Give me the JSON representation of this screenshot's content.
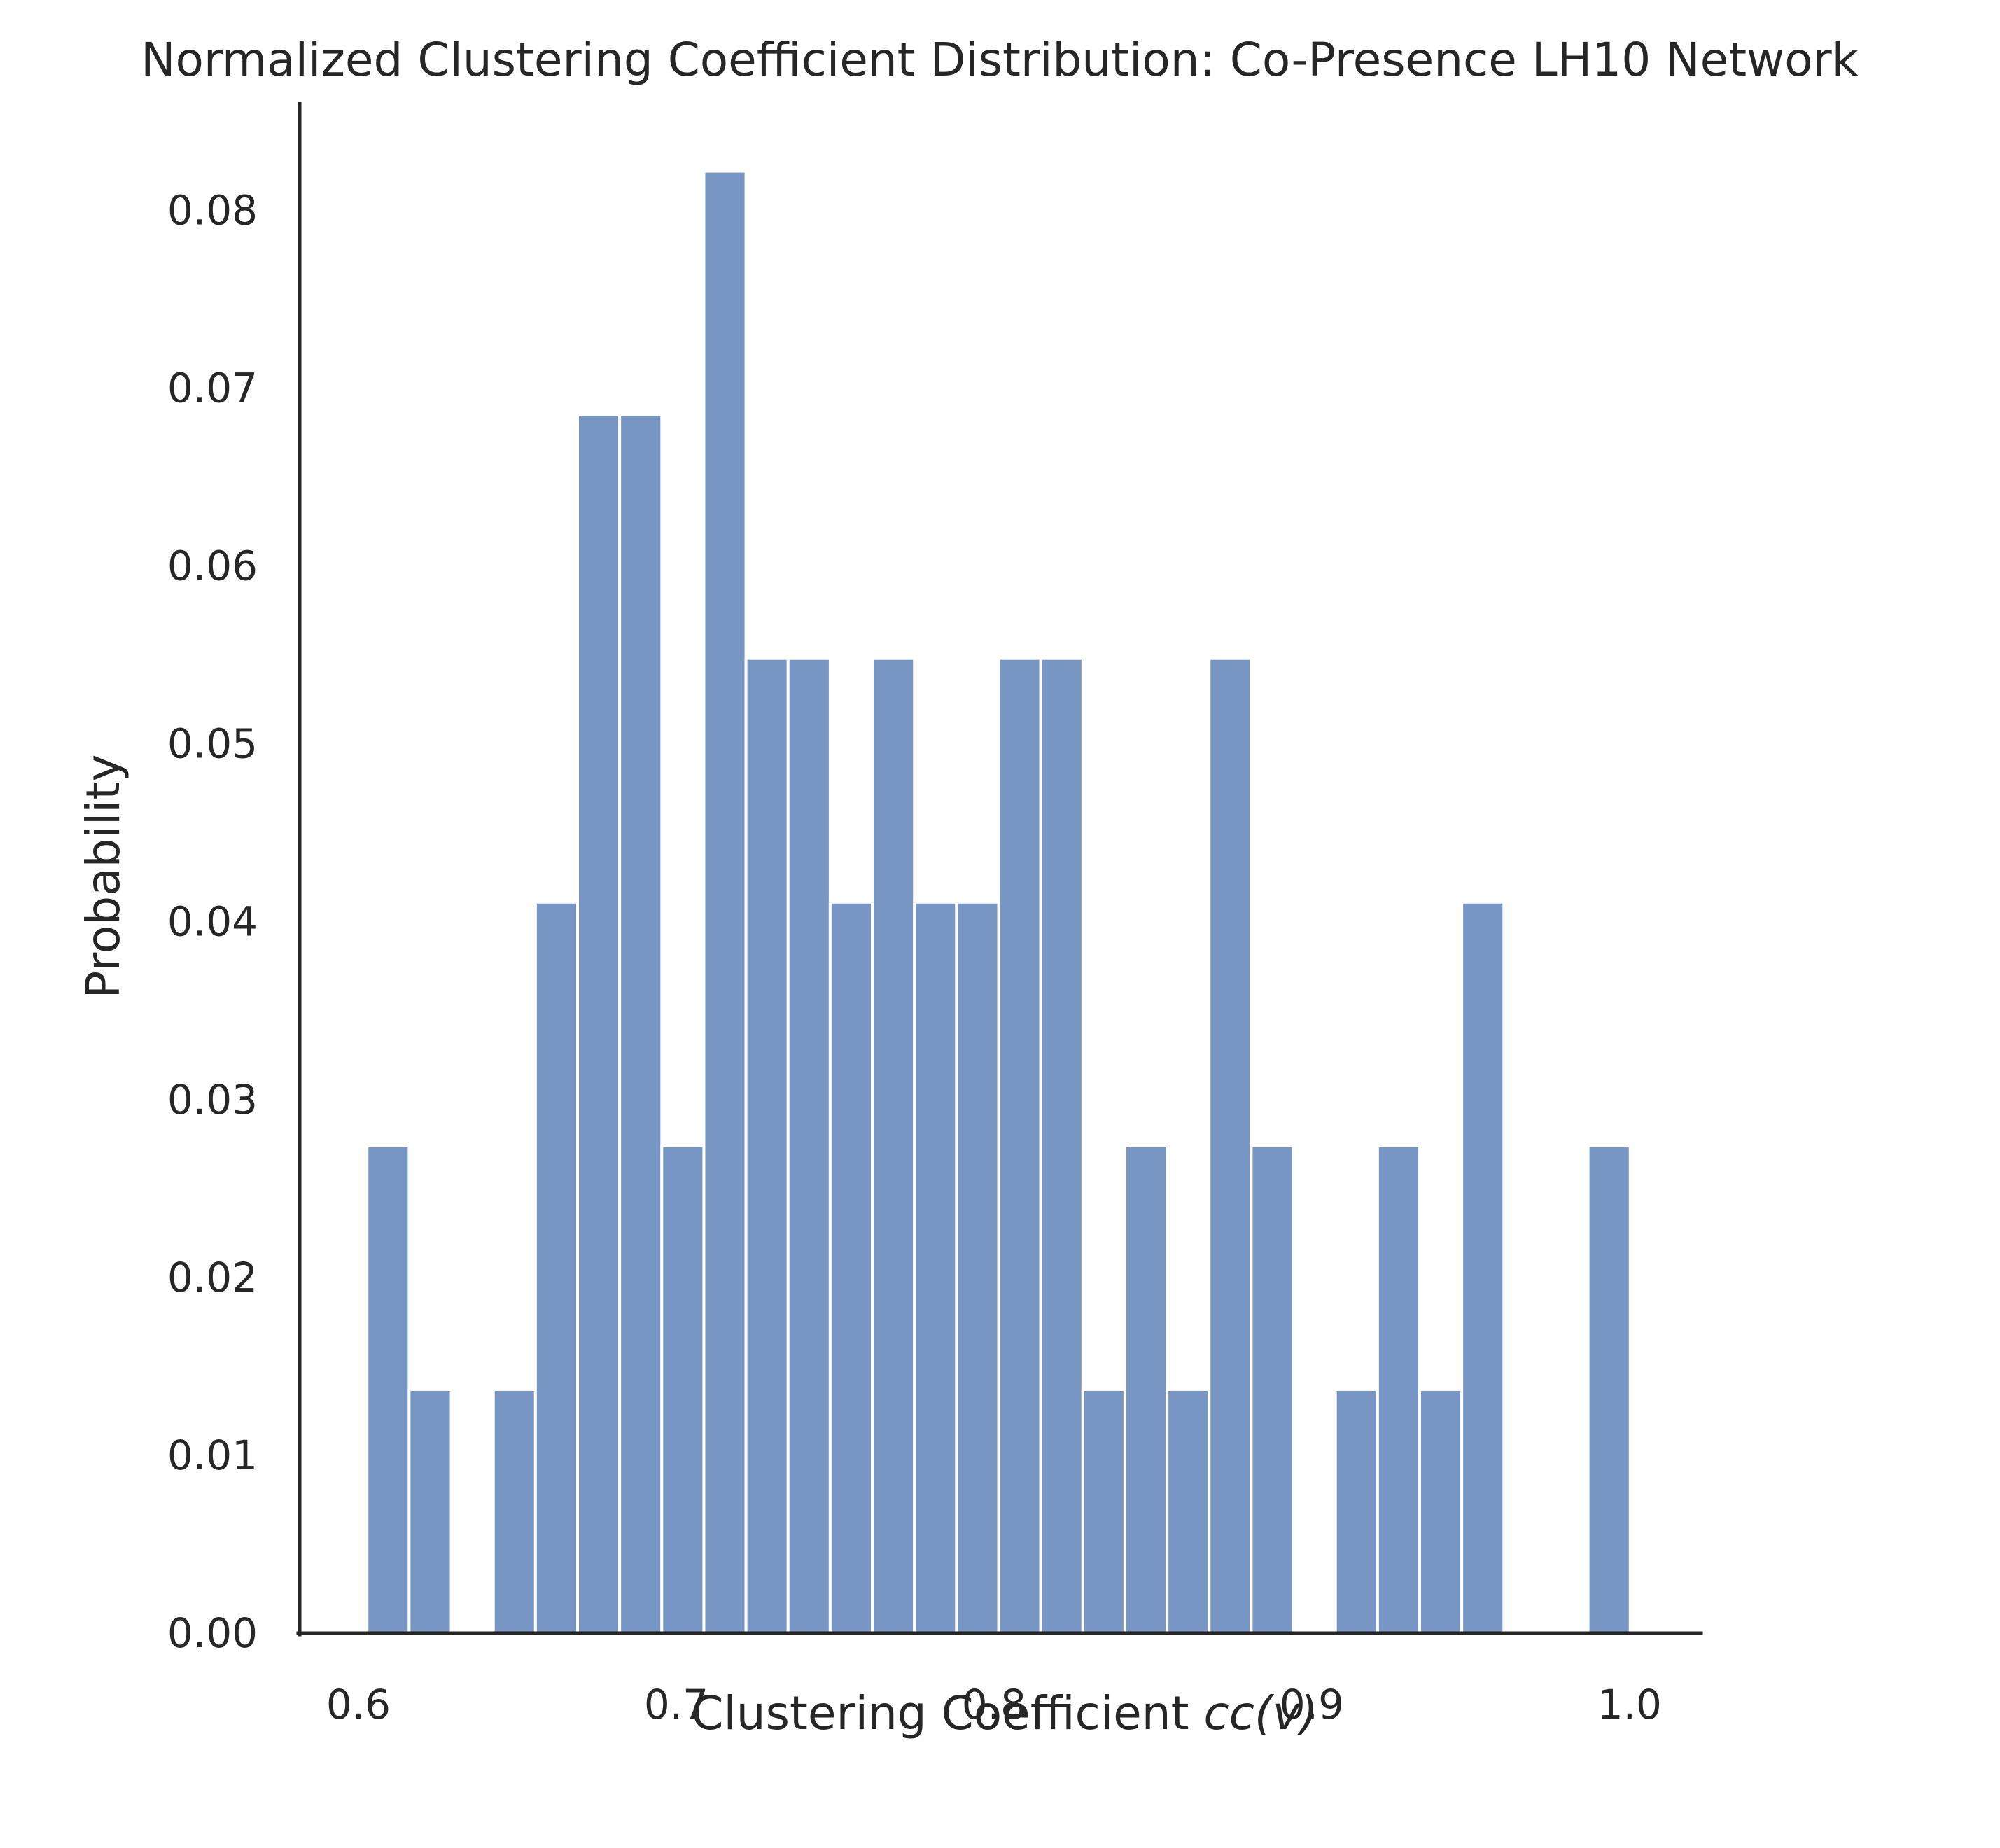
{
  "chart_data": {
    "type": "bar",
    "title": "Normalized Clustering Coefficient Distribution: Co-Presence LH10 Network",
    "xlabel": "Clustering Coefficient",
    "xlabel_math": "cc(v)",
    "ylabel": "Probability",
    "xlim": [
      0.5815,
      1.0225
    ],
    "ylim": [
      0,
      0.086
    ],
    "x_ticks": [
      "0.6",
      "0.7",
      "0.8",
      "0.9",
      "1.0"
    ],
    "x_tick_values": [
      0.6,
      0.7,
      0.8,
      0.9,
      1.0
    ],
    "y_ticks": [
      "0.00",
      "0.01",
      "0.02",
      "0.03",
      "0.04",
      "0.05",
      "0.06",
      "0.07",
      "0.08"
    ],
    "y_tick_values": [
      0,
      0.01,
      0.02,
      0.03,
      0.04,
      0.05,
      0.06,
      0.07,
      0.08
    ],
    "bin_start": 0.6027,
    "bin_width": 0.01325,
    "values": [
      0.0274,
      0.0137,
      0,
      0.0137,
      0.0411,
      0.0685,
      0.0685,
      0.0274,
      0.0822,
      0.0548,
      0.0548,
      0.0411,
      0.0548,
      0.0411,
      0.0411,
      0.0548,
      0.0548,
      0.0137,
      0.0274,
      0.0137,
      0.0548,
      0.0274,
      0,
      0.0137,
      0.0274,
      0.0137,
      0.0411,
      0,
      0,
      0.0274
    ],
    "grid": false,
    "bar_color": "#7896c4",
    "axis_color": "#262626"
  }
}
